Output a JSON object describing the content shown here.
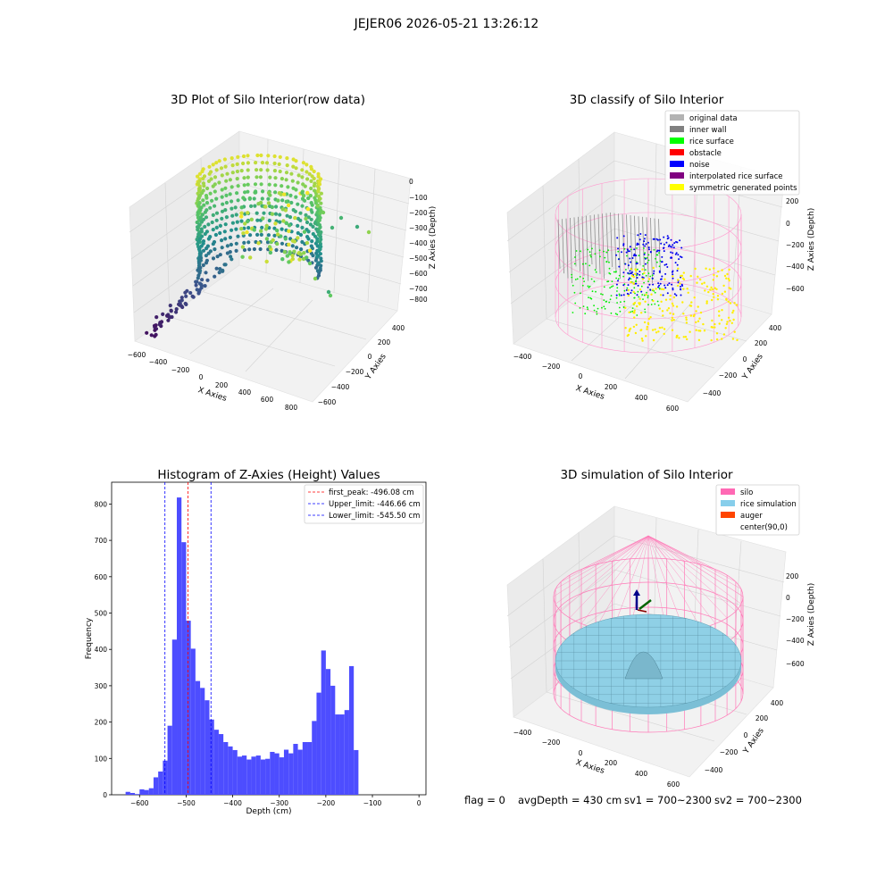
{
  "figure": {
    "suptitle": "JEJER06 2026-05-21 13:26:12",
    "footer": {
      "flag": "flag = 0",
      "avg": "avgDepth = 430 cm",
      "sv1": "sv1 = 700~2300",
      "sv2": "sv2 = 700~2300"
    }
  },
  "chart_data": [
    {
      "type": "scatter",
      "title": "3D Plot of Silo Interior(row data)",
      "xlabel": "X Axies",
      "ylabel": "Y Axies",
      "zlabel": "Z Axies (Depth)",
      "x_ticks": [
        "−600",
        "−400",
        "−200",
        "0",
        "200",
        "400",
        "600",
        "800"
      ],
      "y_ticks": [
        "400",
        "200",
        "0",
        "−200",
        "−400",
        "−600"
      ],
      "z_ticks": [
        "0",
        "−100",
        "−200",
        "−300",
        "−400",
        "−500",
        "−600",
        "−700",
        "−800"
      ],
      "colormap": "viridis"
    },
    {
      "type": "scatter",
      "title": "3D classify of Silo Interior",
      "xlabel": "X Axies",
      "ylabel": "Y Axies",
      "zlabel": "Z Axies (Depth)",
      "x_ticks": [
        "−400",
        "−200",
        "0",
        "200",
        "400",
        "600"
      ],
      "y_ticks": [
        "400",
        "200",
        "0",
        "−200",
        "−400"
      ],
      "z_ticks": [
        "200",
        "0",
        "−200",
        "−400",
        "−600"
      ],
      "legend_position": "top-right",
      "legend": [
        {
          "label": "original data",
          "color": "#b3b3b3"
        },
        {
          "label": "inner wall",
          "color": "#808080"
        },
        {
          "label": "rice surface",
          "color": "#00ff00"
        },
        {
          "label": "obstacle",
          "color": "#ff0000"
        },
        {
          "label": "noise",
          "color": "#0000ff"
        },
        {
          "label": "interpolated rice surface",
          "color": "#800080"
        },
        {
          "label": "symmetric generated points",
          "color": "#ffff00"
        }
      ]
    },
    {
      "type": "bar",
      "title": "Histogram of Z-Axies (Height) Values",
      "xlabel": "Depth (cm)",
      "ylabel": "Frequency",
      "xlim": [
        -660,
        15
      ],
      "ylim": [
        0,
        860
      ],
      "x_ticks": [
        -600,
        -500,
        -400,
        -300,
        -200,
        -100,
        0
      ],
      "y_ticks": [
        0,
        100,
        200,
        300,
        400,
        500,
        600,
        700,
        800
      ],
      "bar_color": "#4d4dff",
      "bin_width": 10,
      "bins": [
        {
          "x": -630,
          "value": 8
        },
        {
          "x": -620,
          "value": 5
        },
        {
          "x": -610,
          "value": 2
        },
        {
          "x": -600,
          "value": 15
        },
        {
          "x": -590,
          "value": 13
        },
        {
          "x": -580,
          "value": 18
        },
        {
          "x": -570,
          "value": 48
        },
        {
          "x": -560,
          "value": 64
        },
        {
          "x": -550,
          "value": 94
        },
        {
          "x": -540,
          "value": 190
        },
        {
          "x": -530,
          "value": 427
        },
        {
          "x": -520,
          "value": 818
        },
        {
          "x": -510,
          "value": 695
        },
        {
          "x": -500,
          "value": 479
        },
        {
          "x": -490,
          "value": 402
        },
        {
          "x": -480,
          "value": 313
        },
        {
          "x": -470,
          "value": 294
        },
        {
          "x": -460,
          "value": 260
        },
        {
          "x": -450,
          "value": 207
        },
        {
          "x": -440,
          "value": 179
        },
        {
          "x": -430,
          "value": 167
        },
        {
          "x": -420,
          "value": 145
        },
        {
          "x": -410,
          "value": 133
        },
        {
          "x": -400,
          "value": 123
        },
        {
          "x": -390,
          "value": 105
        },
        {
          "x": -380,
          "value": 108
        },
        {
          "x": -370,
          "value": 97
        },
        {
          "x": -360,
          "value": 105
        },
        {
          "x": -350,
          "value": 108
        },
        {
          "x": -340,
          "value": 97
        },
        {
          "x": -330,
          "value": 99
        },
        {
          "x": -320,
          "value": 118
        },
        {
          "x": -310,
          "value": 114
        },
        {
          "x": -300,
          "value": 103
        },
        {
          "x": -290,
          "value": 124
        },
        {
          "x": -280,
          "value": 114
        },
        {
          "x": -270,
          "value": 140
        },
        {
          "x": -260,
          "value": 124
        },
        {
          "x": -250,
          "value": 145
        },
        {
          "x": -240,
          "value": 145
        },
        {
          "x": -230,
          "value": 203
        },
        {
          "x": -220,
          "value": 281
        },
        {
          "x": -210,
          "value": 397
        },
        {
          "x": -200,
          "value": 346
        },
        {
          "x": -190,
          "value": 300
        },
        {
          "x": -180,
          "value": 221
        },
        {
          "x": -170,
          "value": 221
        },
        {
          "x": -160,
          "value": 233
        },
        {
          "x": -150,
          "value": 354
        },
        {
          "x": -140,
          "value": 123
        }
      ],
      "vlines": [
        {
          "label": "first_peak: -496.08 cm",
          "x": -496.08,
          "color": "#ff0000"
        },
        {
          "label": "Upper_limit: -446.66 cm",
          "x": -446.66,
          "color": "#0000ff"
        },
        {
          "label": "Lower_limit: -545.50 cm",
          "x": -545.5,
          "color": "#0000ff"
        }
      ],
      "legend_position": "top-right"
    },
    {
      "type": "surface",
      "title": "3D simulation of Silo Interior",
      "xlabel": "X Axies",
      "ylabel": "Y Axies",
      "zlabel": "Z Axies (Depth)",
      "x_ticks": [
        "−400",
        "−200",
        "0",
        "200",
        "400",
        "600"
      ],
      "y_ticks": [
        "400",
        "200",
        "0",
        "−200",
        "−400"
      ],
      "z_ticks": [
        "200",
        "0",
        "−200",
        "−400",
        "−600"
      ],
      "legend_position": "top-right",
      "legend": [
        {
          "label": "silo",
          "color": "#ff69b4"
        },
        {
          "label": "rice simulation",
          "color": "#87ceeb"
        },
        {
          "label": "auger",
          "color": "#ff4500"
        },
        {
          "label": "center(90,0)",
          "color": ""
        }
      ]
    }
  ]
}
